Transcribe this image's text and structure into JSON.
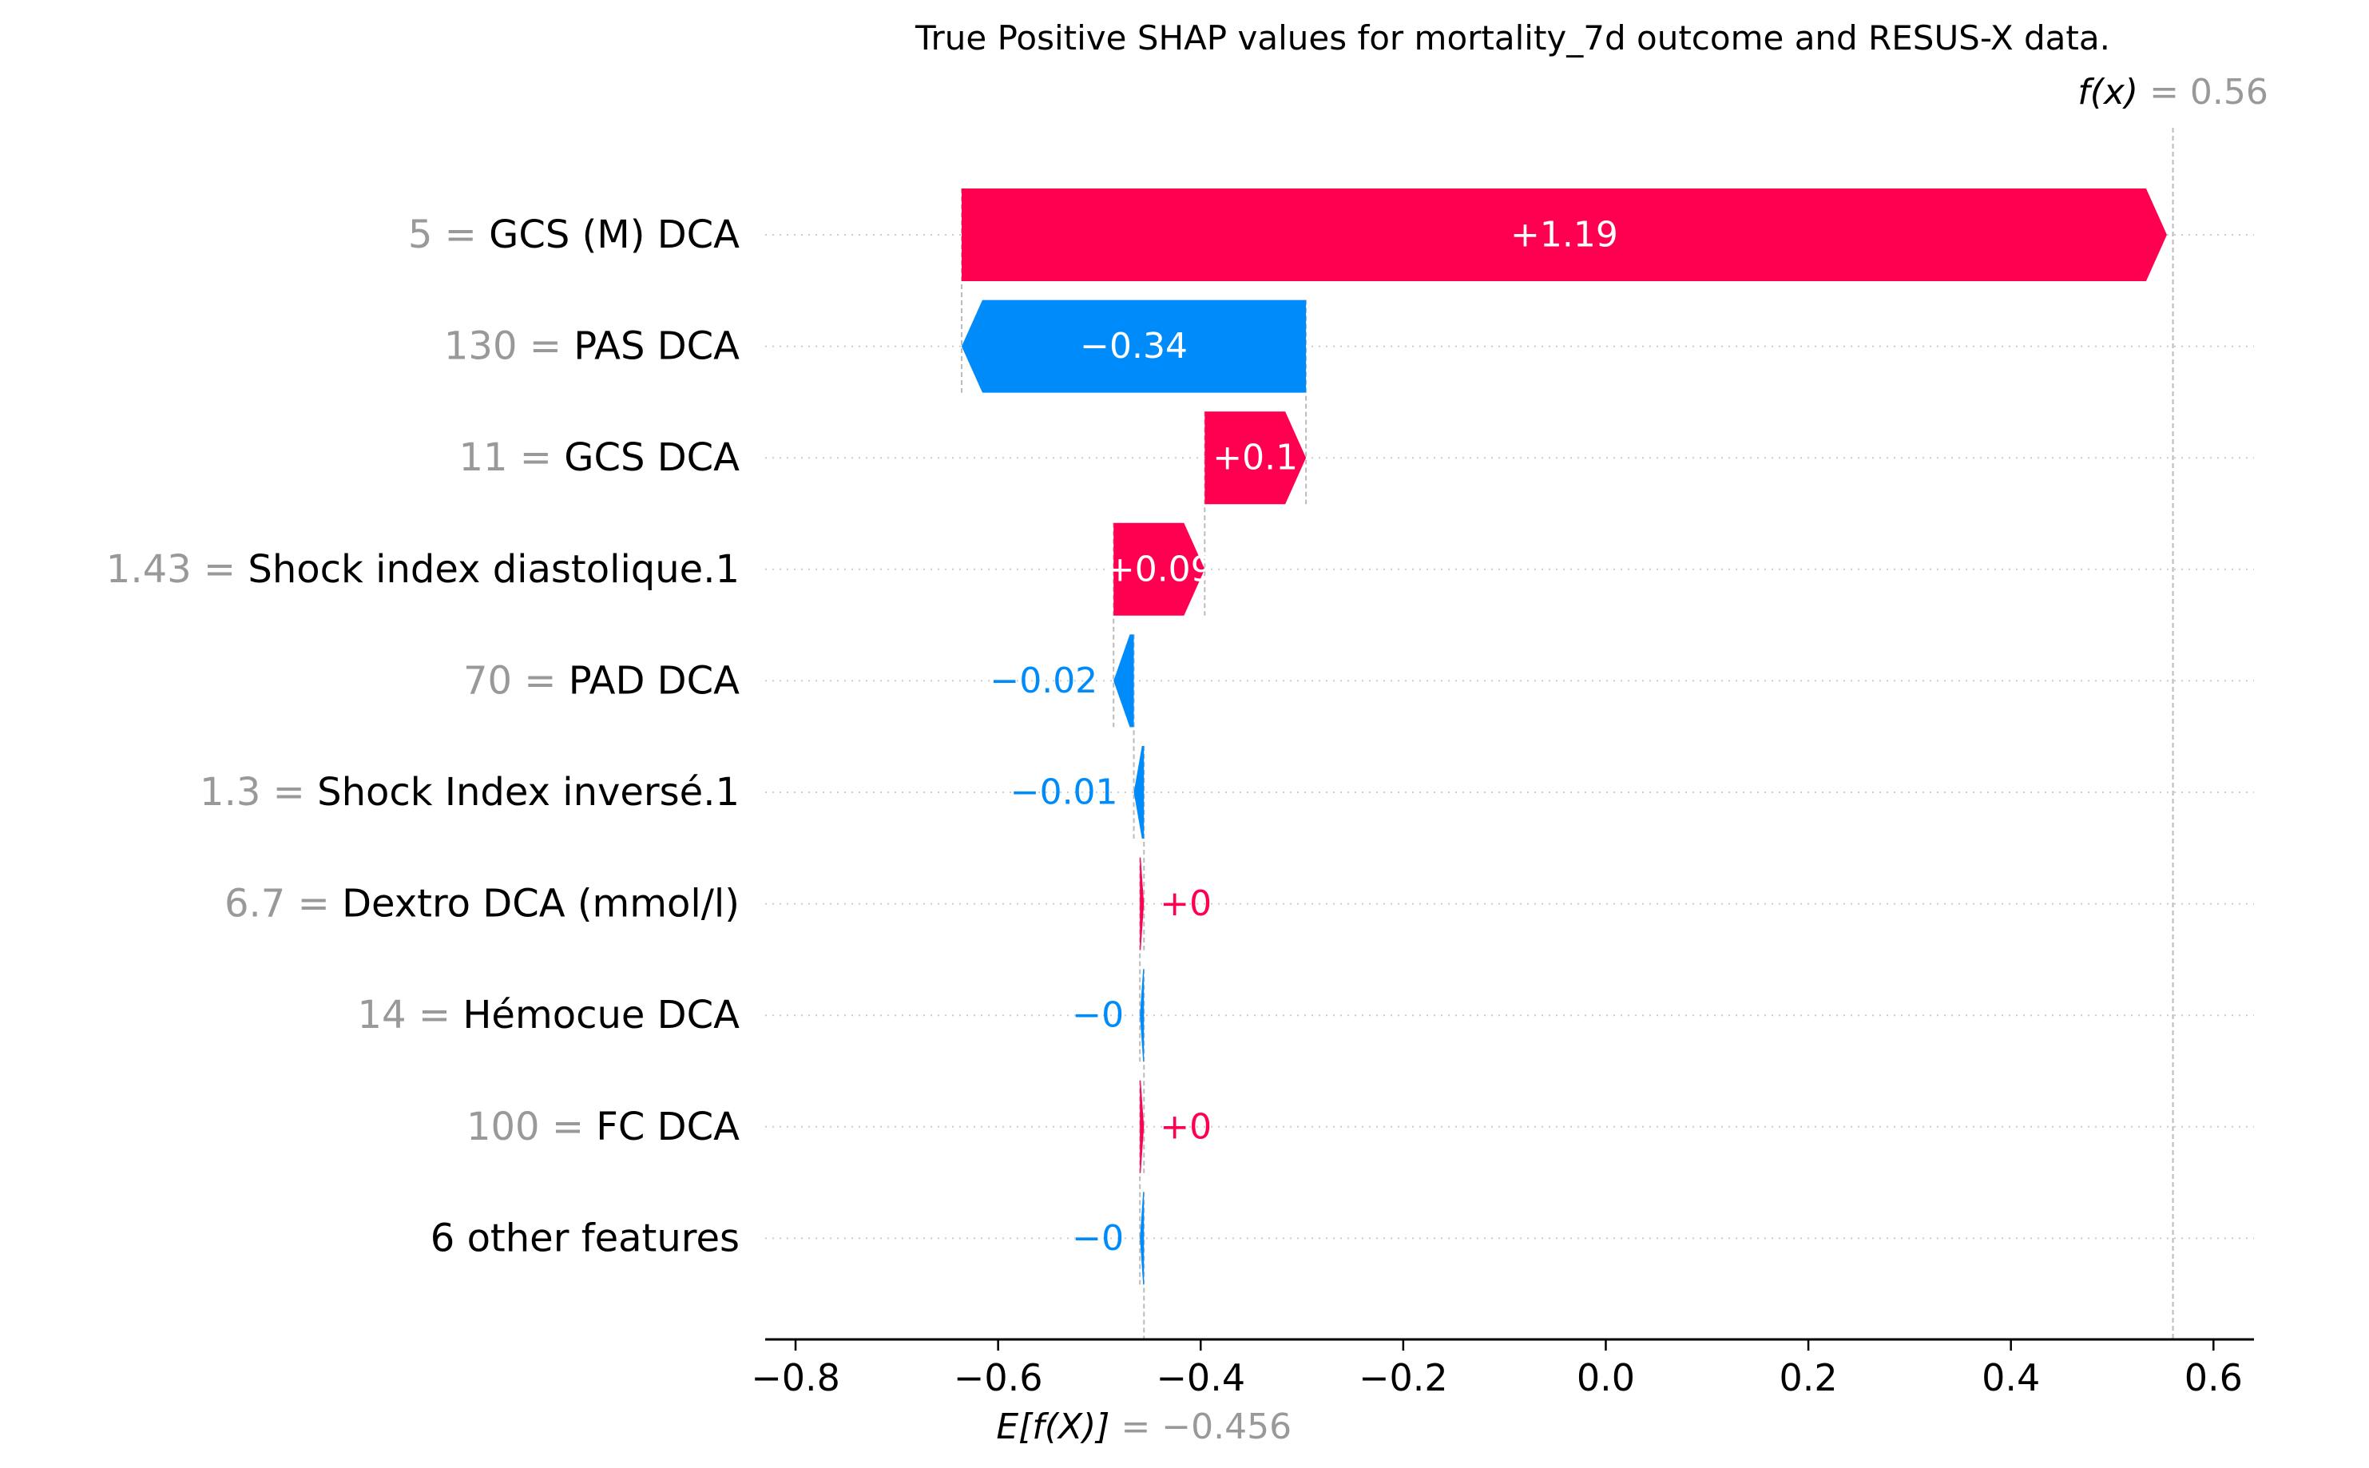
{
  "chart_data": {
    "type": "bar",
    "subtype": "waterfall",
    "title": "True Positive SHAP values for mortality_7d outcome and RESUS-X data.",
    "xlabel": "",
    "ylabel": "",
    "xlim": [
      -0.83,
      0.64
    ],
    "x_ticks": [
      -0.8,
      -0.6,
      -0.4,
      -0.2,
      0.0,
      0.2,
      0.4,
      0.6
    ],
    "x_tick_labels": [
      "−0.8",
      "−0.6",
      "−0.4",
      "−0.2",
      "0.0",
      "0.2",
      "0.4",
      "0.6"
    ],
    "grid": false,
    "base_value": -0.456,
    "base_label": {
      "expr": "E[f(X)]",
      "eq": " = ",
      "value": "−0.456"
    },
    "output_value": 0.56,
    "output_label": {
      "expr": "f(x)",
      "eq": " = ",
      "value": "0.56"
    },
    "colors": {
      "positive": "#ff0051",
      "negative": "#008bfb",
      "value_text": "#999999",
      "axis": "#000000",
      "guide": "#bbbbbb",
      "row_grid": "#cccccc",
      "bar_text": "#ffffff"
    },
    "features": [
      {
        "value": "5",
        "name": "GCS (M) DCA",
        "shap": 1.19,
        "label": "+1.19"
      },
      {
        "value": "130",
        "name": "PAS DCA",
        "shap": -0.34,
        "label": "−0.34"
      },
      {
        "value": "11",
        "name": "GCS DCA",
        "shap": 0.1,
        "label": "+0.1"
      },
      {
        "value": "1.43",
        "name": "Shock index diastolique.1",
        "shap": 0.09,
        "label": "+0.09"
      },
      {
        "value": "70",
        "name": "PAD DCA",
        "shap": -0.02,
        "label": "−0.02"
      },
      {
        "value": "1.3",
        "name": "Shock Index inversé.1",
        "shap": -0.01,
        "label": "−0.01"
      },
      {
        "value": "6.7",
        "name": "Dextro DCA (mmol/l)",
        "shap": 0.004,
        "label": "+0"
      },
      {
        "value": "14",
        "name": "Hémocue DCA",
        "shap": -0.004,
        "label": "−0"
      },
      {
        "value": "100",
        "name": "FC  DCA",
        "shap": 0.004,
        "label": "+0"
      },
      {
        "value": "",
        "name": "6 other features",
        "shap": -0.004,
        "label": "−0"
      }
    ]
  }
}
